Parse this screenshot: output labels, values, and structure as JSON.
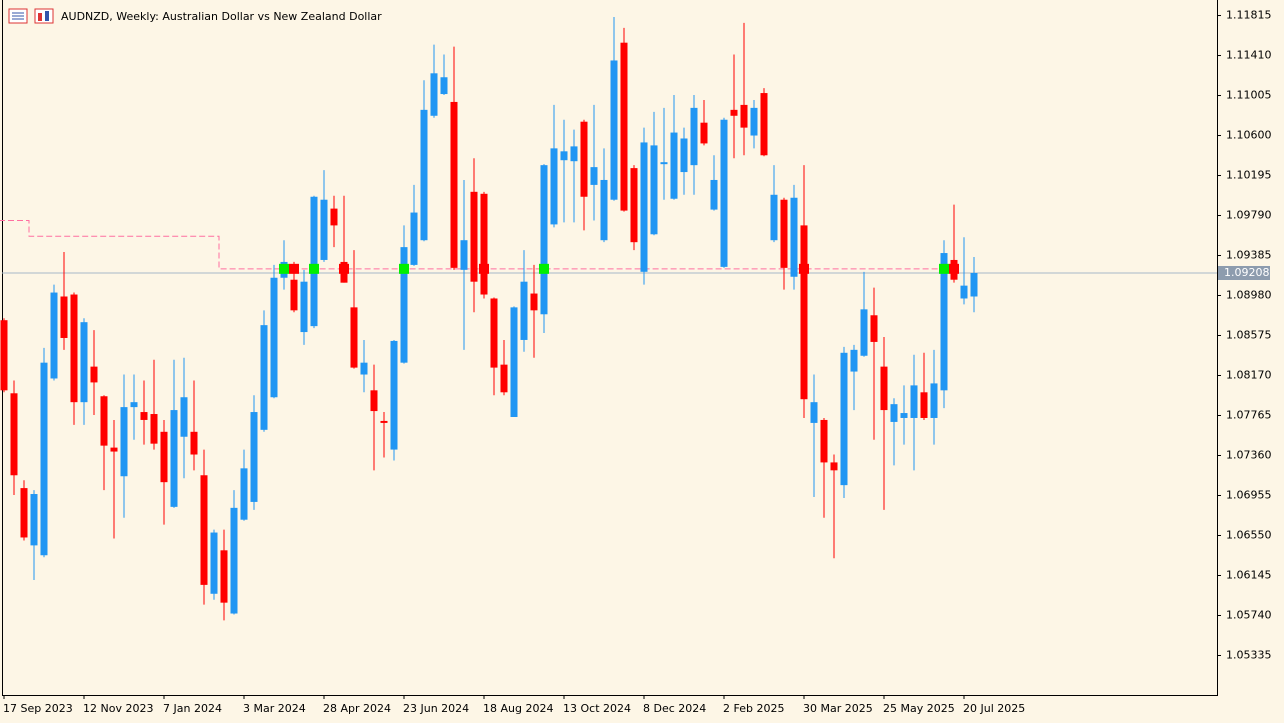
{
  "chart_data": {
    "type": "candlestick",
    "title": "AUDNZD, Weekly:  Australian Dollar vs New Zealand Dollar",
    "categories": [
      "17 Sep 2023",
      null,
      null,
      null,
      null,
      null,
      null,
      null,
      "12 Nov 2023",
      null,
      null,
      null,
      null,
      null,
      null,
      null,
      "7 Jan 2024",
      null,
      null,
      null,
      null,
      null,
      null,
      null,
      "3 Mar 2024",
      null,
      null,
      null,
      null,
      null,
      null,
      null,
      "28 Apr 2024",
      null,
      null,
      null,
      null,
      null,
      null,
      null,
      "23 Jun 2024",
      null,
      null,
      null,
      null,
      null,
      null,
      null,
      "18 Aug 2024",
      null,
      null,
      null,
      null,
      null,
      null,
      null,
      "13 Oct 2024",
      null,
      null,
      null,
      null,
      null,
      null,
      null,
      "8 Dec 2024",
      null,
      null,
      null,
      null,
      null,
      null,
      null,
      "2 Feb 2025",
      null,
      null,
      null,
      null,
      null,
      null,
      null,
      "30 Mar 2025",
      null,
      null,
      null,
      null,
      null,
      null,
      null,
      "25 May 2025",
      null,
      null,
      null,
      null,
      null,
      null,
      null,
      "20 Jul 2025",
      null
    ],
    "open": [
      1.0873,
      1.0799,
      1.0703,
      1.0645,
      1.0635,
      1.0814,
      1.0897,
      1.0899,
      1.079,
      1.0826,
      1.0796,
      1.0744,
      1.0715,
      1.0785,
      1.078,
      1.0778,
      1.076,
      1.0684,
      1.0755,
      1.076,
      1.0716,
      1.0596,
      1.064,
      1.0576,
      1.0671,
      1.0689,
      1.0762,
      1.0795,
      1.0916,
      1.0914,
      1.0861,
      1.0867,
      1.0934,
      1.0986,
      1.0932,
      1.0886,
      1.0818,
      1.0802,
      1.0771,
      1.0742,
      1.083,
      1.0929,
      1.0954,
      1.108,
      1.1102,
      1.1094,
      1.0924,
      1.1003,
      1.1001,
      1.0895,
      1.0828,
      1.0775,
      1.0853,
      1.09,
      1.0879,
      1.097,
      1.1035,
      1.1034,
      1.1074,
      1.101,
      1.0954,
      1.0995,
      1.1154,
      1.1027,
      1.0922,
      1.096,
      1.1031,
      1.0996,
      1.1023,
      1.103,
      1.1073,
      1.0985,
      1.0927,
      1.1086,
      1.1091,
      1.106,
      1.1103,
      1.0954,
      1.0995,
      1.0917,
      1.0969,
      1.0769,
      1.0772,
      1.0729,
      1.0706,
      1.0821,
      1.0837,
      1.0878,
      1.0826,
      1.077,
      1.0774,
      1.0774,
      1.08,
      1.0774,
      1.0802,
      1.0934,
      1.0895,
      1.0897
    ],
    "high": [
      1.0875,
      1.0812,
      1.0711,
      1.0701,
      1.0845,
      1.0909,
      1.0942,
      1.0901,
      1.0875,
      1.0863,
      1.0797,
      1.0772,
      1.0818,
      1.0818,
      1.0812,
      1.0833,
      1.0772,
      1.0833,
      1.0835,
      1.0812,
      1.0742,
      1.0661,
      1.0661,
      1.0701,
      1.0742,
      1.0797,
      1.0883,
      1.0929,
      1.0954,
      1.0932,
      1.0924,
      1.0999,
      1.1025,
      1.0999,
      1.0999,
      1.0944,
      1.0853,
      1.0828,
      1.078,
      1.0853,
      1.0969,
      1.101,
      1.1116,
      1.1152,
      1.1142,
      1.115,
      1.1015,
      1.1037,
      1.1003,
      1.0896,
      1.0853,
      1.0887,
      1.0944,
      1.0929,
      1.1031,
      1.1091,
      1.1076,
      1.1066,
      1.1076,
      1.1091,
      1.1047,
      1.118,
      1.1169,
      1.103,
      1.1068,
      1.1084,
      1.1088,
      1.1101,
      1.1068,
      1.1101,
      1.1096,
      1.104,
      1.1078,
      1.1142,
      1.1174,
      1.1096,
      1.1108,
      1.103,
      1.0997,
      1.101,
      1.103,
      1.0818,
      1.0774,
      1.0737,
      1.0846,
      1.0848,
      1.0922,
      1.0906,
      1.0856,
      1.0794,
      1.0807,
      1.0838,
      1.084,
      1.0843,
      1.0954,
      1.099,
      1.0957,
      1.0937
    ],
    "low": [
      1.08,
      1.0696,
      1.065,
      1.061,
      1.0633,
      1.0812,
      1.0843,
      1.0767,
      1.0767,
      1.0777,
      1.0701,
      1.0652,
      1.0673,
      1.0752,
      1.0747,
      1.0742,
      1.0666,
      1.0683,
      1.0713,
      1.0721,
      1.0585,
      1.059,
      1.0569,
      1.0575,
      1.067,
      1.0681,
      1.076,
      1.0794,
      1.0904,
      1.0881,
      1.0848,
      1.0865,
      1.0932,
      1.0947,
      1.0911,
      1.0824,
      1.08,
      1.0721,
      1.0734,
      1.0731,
      1.0829,
      1.0928,
      1.0953,
      1.1078,
      1.1101,
      1.0924,
      1.0843,
      1.0881,
      1.0895,
      1.0797,
      1.0797,
      1.0775,
      1.0841,
      1.0835,
      1.086,
      1.0967,
      1.0972,
      1.0972,
      1.0964,
      1.0974,
      1.0952,
      1.0994,
      1.0983,
      1.0944,
      1.0909,
      1.0959,
      1.0995,
      1.0995,
      1.1,
      1.1,
      1.105,
      1.0984,
      1.0926,
      1.1037,
      1.104,
      1.1047,
      1.1039,
      1.0952,
      1.0904,
      1.0904,
      1.0774,
      1.0694,
      1.0673,
      1.0632,
      1.0693,
      1.0782,
      1.0836,
      1.0752,
      1.0681,
      1.0726,
      1.0747,
      1.0721,
      1.0772,
      1.0747,
      1.0784,
      1.0911,
      1.0889,
      1.0881
    ],
    "close": [
      1.0802,
      1.0716,
      1.0653,
      1.0697,
      1.083,
      1.0901,
      1.0855,
      1.079,
      1.0871,
      1.081,
      1.0746,
      1.074,
      1.0785,
      1.079,
      1.0772,
      1.0748,
      1.0709,
      1.0782,
      1.0795,
      1.0737,
      1.0605,
      1.0658,
      1.0587,
      1.0683,
      1.0723,
      1.078,
      1.0868,
      1.0916,
      1.0932,
      1.0883,
      1.0912,
      1.0998,
      1.0995,
      1.0969,
      1.0911,
      1.0825,
      1.083,
      1.0781,
      1.0769,
      1.0852,
      1.0947,
      1.0982,
      1.1086,
      1.1123,
      1.1119,
      1.0926,
      1.0954,
      1.0912,
      1.0899,
      1.0825,
      1.08,
      1.0886,
      1.0912,
      1.0883,
      1.103,
      1.1047,
      1.1044,
      1.1049,
      1.0998,
      1.1028,
      1.1015,
      1.1136,
      1.0984,
      1.0952,
      1.1053,
      1.105,
      1.1033,
      1.1063,
      1.1057,
      1.1088,
      1.1052,
      1.1015,
      1.1076,
      1.108,
      1.1068,
      1.1088,
      1.104,
      1.1,
      1.0926,
      1.0997,
      1.0793,
      1.079,
      1.0729,
      1.0721,
      1.084,
      1.0843,
      1.0884,
      1.0851,
      1.0782,
      1.0788,
      1.0779,
      1.0807,
      1.0774,
      1.0809,
      1.0941,
      1.0914,
      1.0908,
      1.09208
    ],
    "up_color": "#2196f3",
    "down_color": "#ff0000",
    "trail": {
      "color": "#ff6fa0",
      "values": [
        1.0974,
        1.0974,
        1.0974,
        1.0958,
        1.0958,
        1.0958,
        1.0958,
        1.0958,
        1.0958,
        1.0958,
        1.0958,
        1.0958,
        1.0958,
        1.0958,
        1.0958,
        1.0958,
        1.0958,
        1.0958,
        1.0958,
        1.0958,
        1.0958,
        1.0958,
        1.0925,
        1.0925,
        1.0925,
        1.0925,
        1.0925,
        1.0925,
        1.0925,
        1.0925,
        1.0925,
        1.0925,
        1.0925,
        1.0925,
        1.0925,
        1.0925,
        1.0925,
        1.0925,
        1.0925,
        1.0925,
        1.0925,
        1.0925,
        1.0925,
        1.0925,
        1.0925,
        1.0925,
        1.0925,
        1.0925,
        1.0925,
        1.0925,
        1.0925,
        1.0925,
        1.0925,
        1.0925,
        1.0925,
        1.0925,
        1.0925,
        1.0925,
        1.0925,
        1.0925,
        1.0925,
        1.0925,
        1.0925,
        1.0925,
        1.0925,
        1.0925,
        1.0925,
        1.0925,
        1.0925,
        1.0925,
        1.0925,
        1.0925,
        1.0925,
        1.0925,
        1.0925,
        1.0925,
        1.0925,
        1.0925,
        1.0925,
        1.0925,
        1.0925,
        1.0925,
        1.0925,
        1.0925,
        1.0925,
        1.0925,
        1.0925,
        1.0925,
        1.0925,
        1.0925,
        1.0925,
        1.0925,
        1.0925,
        1.0925,
        1.0925,
        1.0925,
        null,
        null
      ]
    },
    "buy_signals": {
      "color": "#00ee00",
      "points": [
        {
          "index": 28,
          "value": 1.0925
        },
        {
          "index": 31,
          "value": 1.0925
        },
        {
          "index": 40,
          "value": 1.0925
        },
        {
          "index": 54,
          "value": 1.0925
        },
        {
          "index": 94,
          "value": 1.0925
        }
      ]
    },
    "sell_signals": {
      "color": "#ff0000",
      "points": [
        {
          "index": 29,
          "value": 1.0925
        },
        {
          "index": 34,
          "value": 1.0925
        },
        {
          "index": 48,
          "value": 1.0925
        },
        {
          "index": 80,
          "value": 1.0925
        },
        {
          "index": 95,
          "value": 1.0925
        }
      ]
    },
    "ylim": [
      1.04935,
      1.11952
    ],
    "yticks": [
      1.11815,
      {
        "value": 1.1141,
        "label": "1.11410"
      },
      1.11005,
      {
        "value": 1.106,
        "label": "1.10600"
      },
      1.10195,
      {
        "value": 1.0979,
        "label": "1.09790"
      },
      1.09385,
      {
        "value": 1.0898,
        "label": "1.08980"
      },
      1.08575,
      {
        "value": 1.0817,
        "label": "1.08170"
      },
      1.07765,
      {
        "value": 1.0736,
        "label": "1.07360"
      },
      1.06955,
      {
        "value": 1.0655,
        "label": "1.06550"
      },
      1.06145,
      {
        "value": 1.0574,
        "label": "1.05740"
      },
      1.05335
    ]
  }
}
